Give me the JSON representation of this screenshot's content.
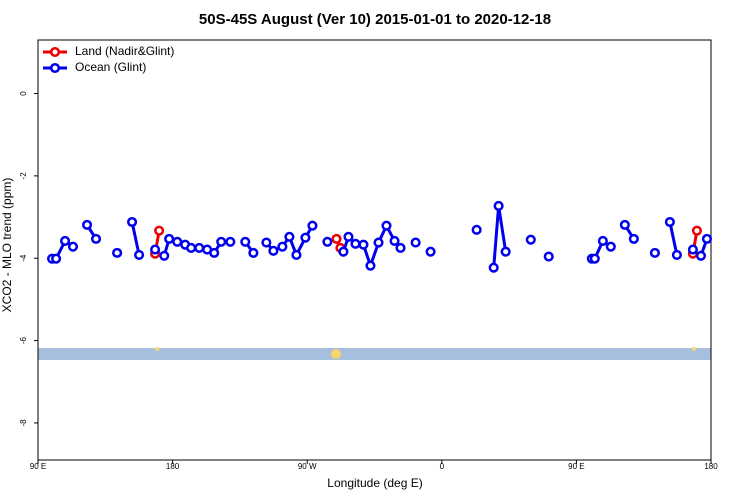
{
  "chart_data": {
    "type": "line",
    "title": "50S-45S August (Ver 10)   2015-01-01 to 2020-12-18",
    "xlabel": "Longitude (deg E)",
    "ylabel": "XCO2 - MLO trend (ppm)",
    "xlim": [
      90,
      540
    ],
    "xticks": [
      {
        "value": 90,
        "label": "90 E"
      },
      {
        "value": 180,
        "label": "180"
      },
      {
        "value": 270,
        "label": "90 W"
      },
      {
        "value": 360,
        "label": "0"
      },
      {
        "value": 450,
        "label": "90 E"
      },
      {
        "value": 540,
        "label": "180"
      }
    ],
    "ylim": [
      -8.9,
      1.3
    ],
    "yticks": [
      0,
      -2,
      -4,
      -6,
      -8
    ],
    "legend": "top-left",
    "series": [
      {
        "name": "Land (Nadir&Glint)",
        "color": "#ee0000",
        "x": [
          168.3,
          171.0,
          null,
          289.6,
          292.2,
          null,
          527.9,
          530.6
        ],
        "values": [
          -3.89,
          -3.33,
          null,
          -3.53,
          -3.75,
          null,
          -3.89,
          -3.33
        ]
      },
      {
        "name": "Ocean (Glint)",
        "color": "#0000ee",
        "x": [
          99.4,
          102.1,
          108.1,
          113.4,
          null,
          122.8,
          128.8,
          null,
          142.9,
          null,
          152.9,
          157.6,
          null,
          168.3,
          null,
          174.4,
          177.7,
          183.1,
          188.4,
          192.4,
          197.8,
          203.1,
          207.8,
          212.5,
          218.6,
          null,
          228.6,
          234.0,
          null,
          242.7,
          247.4,
          253.4,
          258.1,
          262.8,
          268.8,
          273.5,
          null,
          283.5,
          null,
          294.2,
          297.6,
          302.3,
          307.6,
          312.3,
          317.7,
          323.0,
          328.4,
          332.4,
          null,
          342.5,
          null,
          352.5,
          null,
          383.3,
          null,
          394.7,
          398.0,
          402.7,
          null,
          419.5,
          null,
          431.5,
          null,
          460.3,
          462.3,
          467.7,
          473.0,
          null,
          482.4,
          488.4,
          null,
          502.5,
          null,
          512.5,
          517.2,
          null,
          527.9,
          null,
          533.3,
          537.3
        ],
        "values": [
          -4.01,
          -4.01,
          -3.58,
          -3.72,
          null,
          -3.19,
          -3.53,
          null,
          -3.87,
          null,
          -3.12,
          -3.92,
          null,
          -3.79,
          null,
          -3.94,
          -3.53,
          -3.6,
          -3.67,
          -3.75,
          -3.75,
          -3.79,
          -3.87,
          -3.6,
          -3.6,
          null,
          -3.6,
          -3.87,
          null,
          -3.62,
          -3.82,
          -3.72,
          -3.48,
          -3.92,
          -3.5,
          -3.21,
          null,
          -3.6,
          null,
          -3.84,
          -3.48,
          -3.65,
          -3.67,
          -4.18,
          -3.62,
          -3.21,
          -3.58,
          -3.75,
          null,
          -3.62,
          null,
          -3.84,
          null,
          -3.31,
          null,
          -4.23,
          -2.73,
          -3.84,
          null,
          -3.55,
          null,
          -3.96,
          null,
          -4.01,
          -4.01,
          -3.58,
          -3.72,
          null,
          -3.19,
          -3.53,
          null,
          -3.87,
          null,
          -3.12,
          -3.92,
          null,
          -3.79,
          null,
          -3.94,
          -3.53
        ]
      }
    ]
  }
}
